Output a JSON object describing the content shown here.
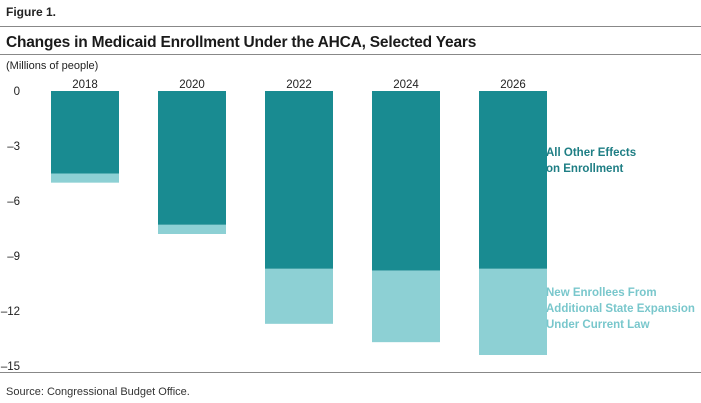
{
  "figure_label": "Figure 1.",
  "title": "Changes in Medicaid Enrollment Under the AHCA, Selected Years",
  "unit_label": "(Millions of people)",
  "source": "Source: Congressional Budget Office.",
  "colors": {
    "dark": "#198b91",
    "light": "#8dd0d4",
    "legend_dark_text": "#1e7e84",
    "legend_light_text": "#79c7cc"
  },
  "legend": {
    "dark_lines": [
      "All Other Effects",
      "on Enrollment"
    ],
    "light_lines": [
      "New Enrollees From",
      "Additional State Expansion",
      "Under Current Law"
    ]
  },
  "chart_data": {
    "type": "bar",
    "stacked": true,
    "categories": [
      "2018",
      "2020",
      "2022",
      "2024",
      "2026"
    ],
    "series": [
      {
        "name": "All Other Effects on Enrollment",
        "values": [
          -4.5,
          -7.3,
          -9.7,
          -9.8,
          -9.7
        ]
      },
      {
        "name": "New Enrollees From Additional State Expansion Under Current Law",
        "values": [
          -0.5,
          -0.5,
          -3.0,
          -3.9,
          -4.7
        ]
      }
    ],
    "ylim": [
      -15,
      0
    ],
    "yticks": [
      0,
      -3,
      -6,
      -9,
      -12,
      -15
    ],
    "ytick_labels": [
      "0",
      "–3",
      "–6",
      "–9",
      "–12",
      "–15"
    ],
    "category_labels_position": "top",
    "legend_position": "right",
    "grid": false
  }
}
